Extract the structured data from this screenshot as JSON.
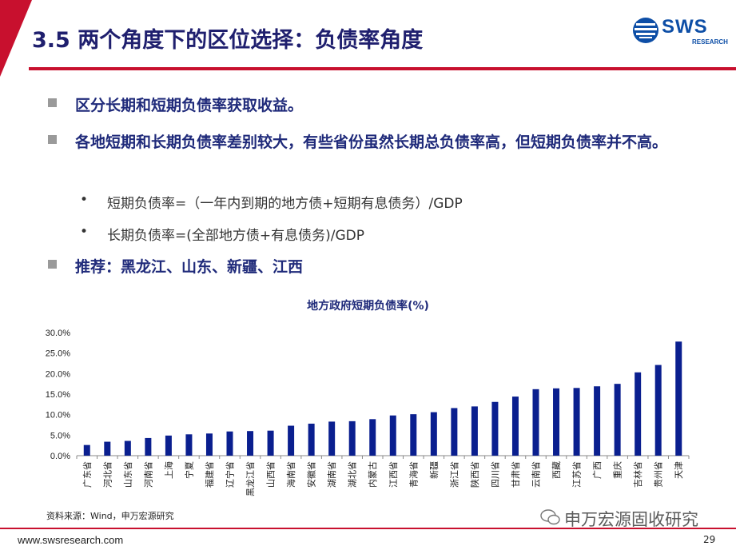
{
  "header": {
    "title": "3.5 两个角度下的区位选择：负债率角度",
    "logo_text": "SWS",
    "logo_sub": "RESEARCH"
  },
  "bullets": [
    {
      "text": "区分长期和短期负债率获取收益。"
    },
    {
      "text": "各地短期和长期负债率差别较大，有些省份虽然长期总负债率高，但短期负债率并不高。"
    },
    {
      "text": "推荐：黑龙江、山东、新疆、江西"
    }
  ],
  "sub_bullets": [
    {
      "dot": "•",
      "text": "短期负债率=（一年内到期的地方债+短期有息债务）/GDP"
    },
    {
      "dot": "•",
      "text": "长期负债率=(全部地方债+有息债务)/GDP"
    }
  ],
  "chart_data": {
    "type": "bar",
    "title": "地方政府短期负债率(%)",
    "categories": [
      "广东省",
      "河北省",
      "山东省",
      "河南省",
      "上海",
      "宁夏",
      "福建省",
      "辽宁省",
      "黑龙江省",
      "山西省",
      "海南省",
      "安徽省",
      "湖南省",
      "湖北省",
      "内蒙古",
      "江西省",
      "青海省",
      "新疆",
      "浙江省",
      "陕西省",
      "四川省",
      "甘肃省",
      "云南省",
      "西藏",
      "江苏省",
      "广西",
      "重庆",
      "吉林省",
      "贵州省",
      "天津"
    ],
    "values": [
      2.6,
      3.4,
      3.6,
      4.3,
      4.9,
      5.2,
      5.4,
      5.9,
      6.0,
      6.1,
      7.3,
      7.8,
      8.3,
      8.4,
      8.9,
      9.8,
      10.1,
      10.6,
      11.6,
      12.0,
      13.1,
      14.4,
      16.2,
      16.4,
      16.5,
      16.9,
      17.5,
      20.3,
      22.1,
      27.8
    ],
    "ylim": [
      0,
      30
    ],
    "yticks": [
      "0.0%",
      "5.0%",
      "10.0%",
      "15.0%",
      "20.0%",
      "25.0%",
      "30.0%"
    ],
    "bar_color": "#0a1f8f",
    "grid": false
  },
  "source": "资料来源：Wind，申万宏源研究",
  "footer": {
    "url": "www.swsresearch.com",
    "page": "29",
    "watermark": "申万宏源固收研究"
  },
  "colors": {
    "accent_red": "#c8102e",
    "title_blue": "#1f1f6e",
    "bar_blue": "#0a1f8f"
  }
}
